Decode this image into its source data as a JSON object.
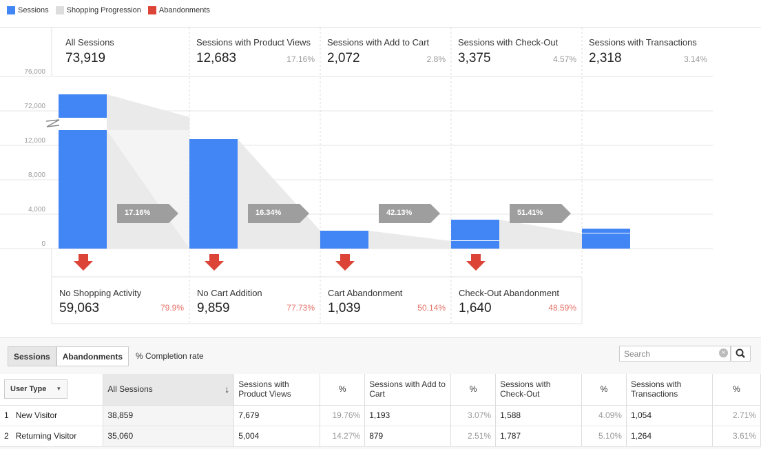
{
  "legend": [
    {
      "label": "Sessions",
      "color": "#4285f4"
    },
    {
      "label": "Shopping Progression",
      "color": "#dddddd"
    },
    {
      "label": "Abandonments",
      "color": "#db4437"
    }
  ],
  "y_ticks": [
    "76,000",
    "72,000",
    "12,000",
    "8,000",
    "4,000",
    "0"
  ],
  "stages": [
    {
      "label": "All Sessions",
      "value": "73,919",
      "pct": ""
    },
    {
      "label": "Sessions with Product Views",
      "value": "12,683",
      "pct": "17.16%"
    },
    {
      "label": "Sessions with Add to Cart",
      "value": "2,072",
      "pct": "2.8%"
    },
    {
      "label": "Sessions with Check-Out",
      "value": "3,375",
      "pct": "4.57%"
    },
    {
      "label": "Sessions with Transactions",
      "value": "2,318",
      "pct": "3.14%"
    }
  ],
  "progress_arrows": [
    "17.16%",
    "16.34%",
    "42.13%",
    "51.41%"
  ],
  "abandonments": [
    {
      "label": "No Shopping Activity",
      "value": "59,063",
      "pct": "79.9%"
    },
    {
      "label": "No Cart Addition",
      "value": "9,859",
      "pct": "77.73%"
    },
    {
      "label": "Cart Abandonment",
      "value": "1,039",
      "pct": "50.14%"
    },
    {
      "label": "Check-Out Abandonment",
      "value": "1,640",
      "pct": "48.59%"
    }
  ],
  "chart_data": {
    "type": "bar",
    "categories": [
      "All Sessions",
      "Sessions with Product Views",
      "Sessions with Add to Cart",
      "Sessions with Check-Out",
      "Sessions with Transactions"
    ],
    "values": [
      73919,
      12683,
      2072,
      3375,
      2318
    ],
    "y_ticks": [
      0,
      4000,
      8000,
      12000,
      72000,
      76000
    ],
    "axis_break": true
  },
  "toolbar": {
    "sessions_label": "Sessions",
    "abandonments_label": "Abandonments",
    "completion_label": "% Completion rate",
    "search_placeholder": "Search"
  },
  "table": {
    "user_type_label": "User Type",
    "headers": [
      "All Sessions",
      "Sessions with Product Views",
      "%",
      "Sessions with Add to Cart",
      "%",
      "Sessions with Check-Out",
      "%",
      "Sessions with Transactions",
      "%"
    ],
    "rows": [
      {
        "idx": "1",
        "type": "New Visitor",
        "cells": [
          "38,859",
          "7,679",
          "19.76%",
          "1,193",
          "3.07%",
          "1,588",
          "4.09%",
          "1,054",
          "2.71%"
        ]
      },
      {
        "idx": "2",
        "type": "Returning Visitor",
        "cells": [
          "35,060",
          "5,004",
          "14.27%",
          "879",
          "2.51%",
          "1,787",
          "5.10%",
          "1,264",
          "3.61%"
        ]
      }
    ]
  }
}
